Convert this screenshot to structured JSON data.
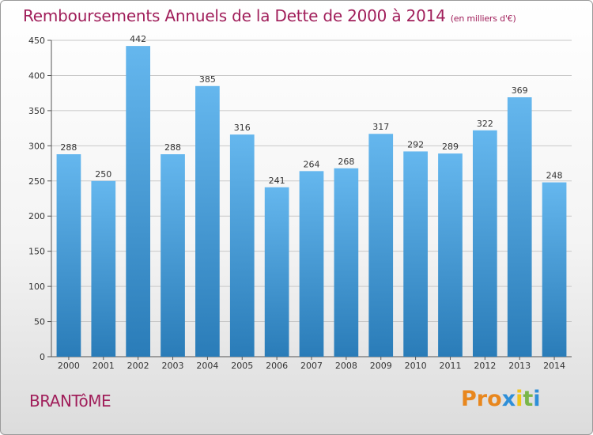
{
  "header": {
    "title": "Remboursements Annuels de la Dette de 2000 à 2014",
    "unit_note": "(en milliers d'€)"
  },
  "footer": {
    "commune": "BRANTôME",
    "logo_text": "Proxiti"
  },
  "colors": {
    "bar_top": "#65b7ee",
    "bar_bottom": "#2a7cb8",
    "title": "#a01e5a",
    "logo_letters": [
      "#e8871e",
      "#e8871e",
      "#e8871e",
      "#2e8fd8",
      "#f0c419",
      "#7ab648",
      "#2e8fd8"
    ]
  },
  "chart_data": {
    "type": "bar",
    "title": "Remboursements Annuels de la Dette de 2000 à 2014",
    "subtitle": "(en milliers d'€)",
    "xlabel": "",
    "ylabel": "",
    "categories": [
      "2000",
      "2001",
      "2002",
      "2003",
      "2004",
      "2005",
      "2006",
      "2007",
      "2008",
      "2009",
      "2010",
      "2011",
      "2012",
      "2013",
      "2014"
    ],
    "values": [
      288,
      250,
      442,
      288,
      385,
      316,
      241,
      264,
      268,
      317,
      292,
      289,
      322,
      369,
      248
    ],
    "ylim": [
      0,
      450
    ],
    "yticks": [
      0,
      50,
      100,
      150,
      200,
      250,
      300,
      350,
      400,
      450
    ],
    "grid": true,
    "legend": "none"
  }
}
